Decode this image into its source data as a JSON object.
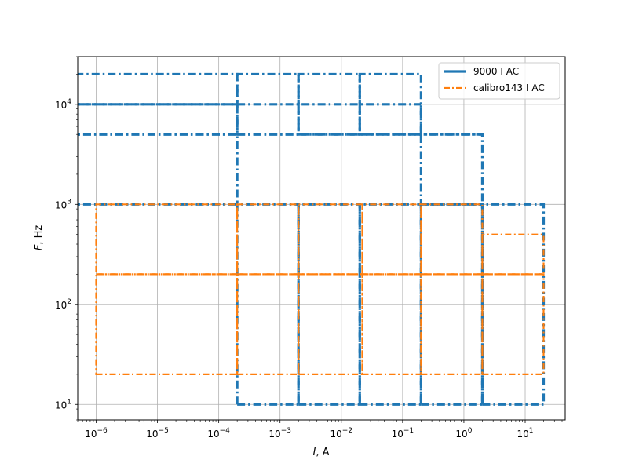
{
  "chart_data": {
    "type": "line",
    "title": "",
    "xlabel": "I, A",
    "ylabel": "F, Hz",
    "xscale": "log",
    "yscale": "log",
    "xlim": [
      5e-07,
      45
    ],
    "ylim": [
      7,
      30000
    ],
    "grid": true,
    "legend_position": "top-right",
    "x_ticks": [
      {
        "value": 1e-06,
        "label": "10^-6"
      },
      {
        "value": 1e-05,
        "label": "10^-5"
      },
      {
        "value": 0.0001,
        "label": "10^-4"
      },
      {
        "value": 0.001,
        "label": "10^-3"
      },
      {
        "value": 0.01,
        "label": "10^-2"
      },
      {
        "value": 0.1,
        "label": "10^-1"
      },
      {
        "value": 1,
        "label": "10^0"
      },
      {
        "value": 10,
        "label": "10^1"
      }
    ],
    "y_ticks": [
      {
        "value": 10,
        "label": "10^1"
      },
      {
        "value": 100,
        "label": "10^2"
      },
      {
        "value": 1000,
        "label": "10^3"
      },
      {
        "value": 10000,
        "label": "10^4"
      }
    ],
    "series": [
      {
        "name": "9000 I AC",
        "color": "#1f77b4",
        "rectangles": [
          {
            "i": [
              0.0002,
              0.002
            ],
            "f": [
              10,
              1000
            ]
          },
          {
            "i": [
              0.002,
              0.02
            ],
            "f": [
              10,
              1000
            ]
          },
          {
            "i": [
              0.02,
              0.2
            ],
            "f": [
              10,
              1000
            ]
          },
          {
            "i": [
              0.2,
              2
            ],
            "f": [
              10,
              1000
            ]
          },
          {
            "i": [
              2,
              20
            ],
            "f": [
              10,
              1000
            ]
          },
          {
            "i": [
              1e-07,
              0.0002
            ],
            "f": [
              1000,
              5000
            ]
          },
          {
            "i": [
              1e-07,
              0.0002
            ],
            "f": [
              5000,
              10000
            ]
          },
          {
            "i": [
              1e-07,
              0.0002
            ],
            "f": [
              10000,
              20000
            ]
          },
          {
            "i": [
              0.0002,
              0.002
            ],
            "f": [
              5000,
              20000
            ]
          },
          {
            "i": [
              0.002,
              0.02
            ],
            "f": [
              5000,
              20000
            ]
          },
          {
            "i": [
              0.02,
              0.2
            ],
            "f": [
              5000,
              20000
            ]
          },
          {
            "i": [
              0.2,
              2
            ],
            "f": [
              1000,
              5000
            ]
          }
        ],
        "segments": [
          {
            "i": [
              0.0002,
              0.2
            ],
            "f": [
              10000,
              10000
            ]
          },
          {
            "i": [
              0.0002,
              2
            ],
            "f": [
              5000,
              5000
            ]
          },
          {
            "i": [
              0.2,
              0.2
            ],
            "f": [
              5000,
              10000
            ]
          }
        ]
      },
      {
        "name": "calibro143 I AC",
        "color": "#ff7f0e",
        "rectangles": [
          {
            "i": [
              1e-06,
              0.0002
            ],
            "f": [
              20,
              200
            ]
          },
          {
            "i": [
              1e-06,
              0.0002
            ],
            "f": [
              200,
              1000
            ]
          },
          {
            "i": [
              0.0002,
              0.002
            ],
            "f": [
              20,
              200
            ]
          },
          {
            "i": [
              0.0002,
              0.002
            ],
            "f": [
              200,
              1000
            ]
          },
          {
            "i": [
              0.002,
              0.022
            ],
            "f": [
              20,
              200
            ]
          },
          {
            "i": [
              0.002,
              0.022
            ],
            "f": [
              200,
              1000
            ]
          },
          {
            "i": [
              0.022,
              0.2
            ],
            "f": [
              20,
              200
            ]
          },
          {
            "i": [
              0.022,
              0.2
            ],
            "f": [
              200,
              1000
            ]
          },
          {
            "i": [
              0.2,
              2
            ],
            "f": [
              20,
              200
            ]
          },
          {
            "i": [
              0.2,
              2
            ],
            "f": [
              200,
              1000
            ]
          },
          {
            "i": [
              2,
              20
            ],
            "f": [
              20,
              200
            ]
          },
          {
            "i": [
              2,
              20
            ],
            "f": [
              200,
              500
            ]
          }
        ],
        "segments": []
      }
    ]
  }
}
